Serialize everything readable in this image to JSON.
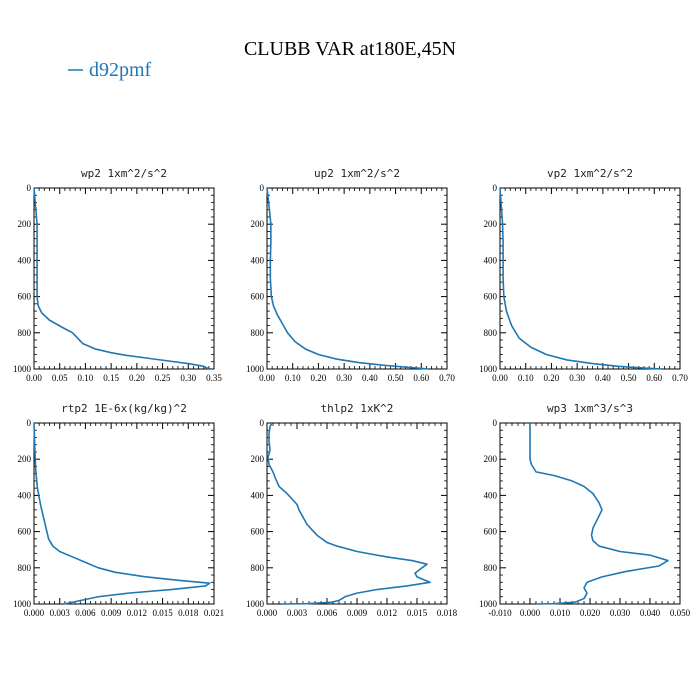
{
  "figure": {
    "title": "CLUBB VAR at180E,45N",
    "legend_label": "d92pmf",
    "series_color": "#1f77b4"
  },
  "chart_data": [
    {
      "type": "line",
      "title": "wp2  1xm^2/s^2",
      "xlabel": "",
      "ylabel": "",
      "xlim": [
        0,
        0.35
      ],
      "ylim": [
        1000,
        0
      ],
      "xticks": [
        0.0,
        0.05,
        0.1,
        0.15,
        0.2,
        0.25,
        0.3,
        0.35
      ],
      "xtick_labels": [
        "0.00",
        "0.05",
        "0.10",
        "0.15",
        "0.20",
        "0.25",
        "0.30",
        "0.35"
      ],
      "yticks": [
        0,
        200,
        400,
        600,
        800,
        1000
      ],
      "ytick_labels": [
        "0",
        "200",
        "400",
        "600",
        "800",
        "1000"
      ],
      "series": [
        {
          "name": "d92pmf",
          "x": [
            0.0,
            0.003,
            0.006,
            0.006,
            0.006,
            0.006,
            0.006,
            0.008,
            0.015,
            0.03,
            0.055,
            0.075,
            0.085,
            0.095,
            0.12,
            0.15,
            0.18,
            0.22,
            0.26,
            0.3,
            0.33,
            0.34
          ],
          "y": [
            0,
            100,
            200,
            300,
            400,
            500,
            600,
            650,
            690,
            730,
            770,
            800,
            830,
            860,
            890,
            910,
            925,
            940,
            955,
            970,
            985,
            1000
          ]
        }
      ]
    },
    {
      "type": "line",
      "title": "up2  1xm^2/s^2",
      "xlabel": "",
      "ylabel": "",
      "xlim": [
        0,
        0.7
      ],
      "ylim": [
        1000,
        0
      ],
      "xticks": [
        0.0,
        0.1,
        0.2,
        0.3,
        0.4,
        0.5,
        0.6,
        0.7
      ],
      "xtick_labels": [
        "0.00",
        "0.10",
        "0.20",
        "0.30",
        "0.40",
        "0.50",
        "0.60",
        "0.70"
      ],
      "yticks": [
        0,
        200,
        400,
        600,
        800,
        1000
      ],
      "ytick_labels": [
        "0",
        "200",
        "400",
        "600",
        "800",
        "1000"
      ],
      "series": [
        {
          "name": "d92pmf",
          "x": [
            0.0,
            0.008,
            0.015,
            0.015,
            0.013,
            0.013,
            0.017,
            0.025,
            0.04,
            0.06,
            0.08,
            0.11,
            0.15,
            0.2,
            0.27,
            0.36,
            0.46,
            0.56,
            0.63
          ],
          "y": [
            0,
            100,
            200,
            300,
            400,
            500,
            600,
            650,
            700,
            750,
            800,
            850,
            890,
            920,
            945,
            965,
            980,
            992,
            1000
          ]
        }
      ]
    },
    {
      "type": "line",
      "title": "vp2  1xm^2/s^2",
      "xlabel": "",
      "ylabel": "",
      "xlim": [
        0,
        0.7
      ],
      "ylim": [
        1000,
        0
      ],
      "xticks": [
        0.0,
        0.1,
        0.2,
        0.3,
        0.4,
        0.5,
        0.6,
        0.7
      ],
      "xtick_labels": [
        "0.00",
        "0.10",
        "0.20",
        "0.30",
        "0.40",
        "0.50",
        "0.60",
        "0.70"
      ],
      "yticks": [
        0,
        200,
        400,
        600,
        800,
        1000
      ],
      "ytick_labels": [
        "0",
        "200",
        "400",
        "600",
        "800",
        "1000"
      ],
      "series": [
        {
          "name": "d92pmf",
          "x": [
            0.0,
            0.005,
            0.01,
            0.012,
            0.012,
            0.012,
            0.015,
            0.025,
            0.045,
            0.075,
            0.12,
            0.18,
            0.26,
            0.36,
            0.46,
            0.56,
            0.63
          ],
          "y": [
            0,
            100,
            200,
            300,
            400,
            500,
            600,
            680,
            760,
            830,
            880,
            920,
            950,
            970,
            985,
            995,
            1000
          ]
        }
      ]
    },
    {
      "type": "line",
      "title": "rtp2  1E-6x(kg/kg)^2",
      "xlabel": "",
      "ylabel": "",
      "xlim": [
        0,
        0.021
      ],
      "ylim": [
        1000,
        0
      ],
      "xticks": [
        0.0,
        0.003,
        0.006,
        0.009,
        0.012,
        0.015,
        0.018,
        0.021
      ],
      "xtick_labels": [
        "0.000",
        "0.003",
        "0.006",
        "0.009",
        "0.012",
        "0.015",
        "0.018",
        "0.021"
      ],
      "yticks": [
        0,
        200,
        400,
        600,
        800,
        1000
      ],
      "ytick_labels": [
        "0",
        "200",
        "400",
        "600",
        "800",
        "1000"
      ],
      "series": [
        {
          "name": "d92pmf",
          "x": [
            0.0,
            0.0001,
            0.0002,
            0.0004,
            0.0008,
            0.0012,
            0.0015,
            0.0017,
            0.0022,
            0.003,
            0.0045,
            0.006,
            0.0075,
            0.0095,
            0.013,
            0.017,
            0.0205,
            0.02,
            0.016,
            0.011,
            0.0075,
            0.0055,
            0.004,
            0.0035
          ],
          "y": [
            0,
            150,
            260,
            360,
            460,
            540,
            600,
            640,
            680,
            710,
            740,
            770,
            800,
            825,
            850,
            870,
            885,
            900,
            920,
            940,
            960,
            980,
            995,
            1000
          ]
        }
      ]
    },
    {
      "type": "line",
      "title": "thlp2  1xK^2",
      "xlabel": "",
      "ylabel": "",
      "xlim": [
        0,
        0.018
      ],
      "ylim": [
        1000,
        0
      ],
      "xticks": [
        0.0,
        0.003,
        0.006,
        0.009,
        0.012,
        0.015,
        0.018
      ],
      "xtick_labels": [
        "0.000",
        "0.003",
        "0.006",
        "0.009",
        "0.012",
        "0.015",
        "0.018"
      ],
      "yticks": [
        0,
        200,
        400,
        600,
        800,
        1000
      ],
      "ytick_labels": [
        "0",
        "200",
        "400",
        "600",
        "800",
        "1000"
      ],
      "series": [
        {
          "name": "d92pmf",
          "x": [
            0.0005,
            0.0003,
            0.0002,
            0.0002,
            0.0003,
            0.0001,
            0.0002,
            0.0006,
            0.0008,
            0.0012,
            0.002,
            0.0025,
            0.003,
            0.0032,
            0.0035,
            0.0038,
            0.004,
            0.0045,
            0.005,
            0.0055,
            0.006,
            0.007,
            0.009,
            0.012,
            0.0145,
            0.016,
            0.0155,
            0.0148,
            0.015,
            0.0163,
            0.014,
            0.011,
            0.009,
            0.0078,
            0.0072,
            0.0065,
            0.004,
            0.0015
          ],
          "y": [
            0,
            20,
            60,
            100,
            150,
            190,
            230,
            270,
            300,
            350,
            390,
            420,
            450,
            480,
            510,
            540,
            560,
            590,
            620,
            640,
            660,
            680,
            710,
            740,
            760,
            780,
            800,
            830,
            850,
            880,
            900,
            920,
            940,
            960,
            980,
            990,
            998,
            1000
          ]
        }
      ]
    },
    {
      "type": "line",
      "title": "wp3  1xm^3/s^3",
      "xlabel": "",
      "ylabel": "",
      "xlim": [
        -0.01,
        0.05
      ],
      "ylim": [
        1000,
        0
      ],
      "xticks": [
        -0.01,
        0.0,
        0.01,
        0.02,
        0.03,
        0.04,
        0.05
      ],
      "xtick_labels": [
        "-0.010",
        "0.000",
        "0.010",
        "0.020",
        "0.030",
        "0.040",
        "0.050"
      ],
      "yticks": [
        0,
        200,
        400,
        600,
        800,
        1000
      ],
      "ytick_labels": [
        "0",
        "200",
        "400",
        "600",
        "800",
        "1000"
      ],
      "series": [
        {
          "name": "d92pmf",
          "x": [
            0.0,
            0.0,
            0.0,
            0.0005,
            0.002,
            0.008,
            0.014,
            0.018,
            0.021,
            0.023,
            0.024,
            0.0225,
            0.021,
            0.0205,
            0.021,
            0.023,
            0.03,
            0.04,
            0.046,
            0.043,
            0.032,
            0.024,
            0.019,
            0.018,
            0.019,
            0.018,
            0.015,
            0.008,
            0.002
          ],
          "y": [
            0,
            100,
            200,
            230,
            270,
            290,
            320,
            350,
            390,
            440,
            480,
            530,
            580,
            620,
            650,
            680,
            710,
            730,
            760,
            790,
            820,
            850,
            880,
            910,
            940,
            970,
            990,
            998,
            1000
          ]
        }
      ]
    }
  ]
}
